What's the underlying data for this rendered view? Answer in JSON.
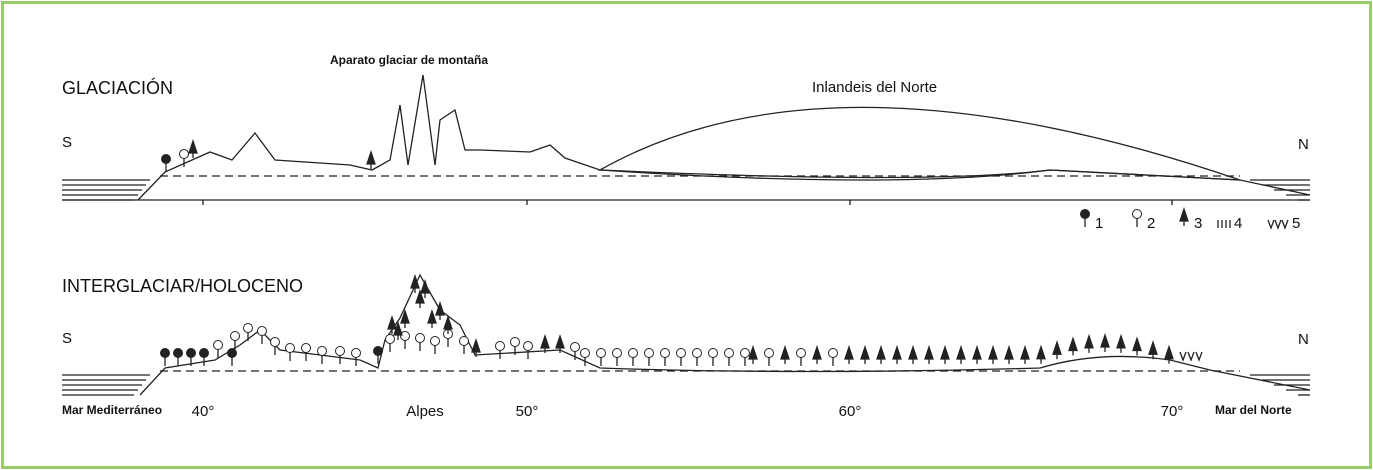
{
  "panels": [
    {
      "title": "GLACIACIÓN",
      "south": "S",
      "north": "N",
      "labels": [
        "Aparato glaciar de montaña",
        "Inlandeis del Norte"
      ]
    },
    {
      "title": "INTERGLACIAR/HOLOCENO",
      "south": "S",
      "north": "N"
    }
  ],
  "legend": [
    "1",
    "2",
    "3",
    "4",
    "5"
  ],
  "axis": {
    "left": "Mar Mediterráneo",
    "right": "Mar del Norte",
    "center": "Alpes",
    "ticks": [
      "40°",
      "50°",
      "60°",
      "70°"
    ]
  }
}
